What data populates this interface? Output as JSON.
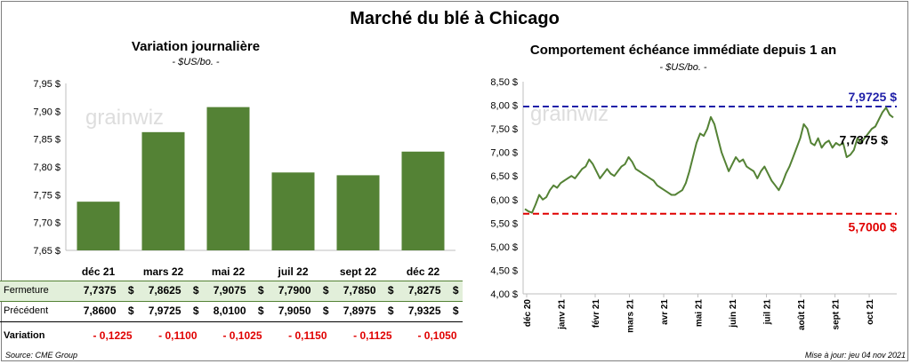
{
  "title": "Marché du blé à Chicago",
  "left_chart": {
    "title": "Variation  journalière",
    "subtitle": "- $US/bo. -"
  },
  "right_chart": {
    "title": "Comportement  échéance immédiate depuis 1 an",
    "subtitle": "- $US/bo. -"
  },
  "watermark": "grainwiz",
  "table": {
    "close_label": "Fermeture",
    "prev_label": "Précédent",
    "var_label": "Variation",
    "currency": "$",
    "close": [
      "7,7375",
      "7,8625",
      "7,9075",
      "7,7900",
      "7,7850",
      "7,8275"
    ],
    "prev": [
      "7,8600",
      "7,9725",
      "8,0100",
      "7,9050",
      "7,8975",
      "7,9325"
    ],
    "variation": [
      "- 0,1225",
      "- 0,1100",
      "- 0,1025",
      "- 0,1150",
      "- 0,1125",
      "- 0,1050"
    ]
  },
  "footer": {
    "source": "Source: CME Group",
    "updated": "Mise à jour: jeu 04 nov 2021"
  },
  "colors": {
    "bar": "#548235",
    "line": "#548235",
    "high": "#1f1fa8",
    "low": "#e00000",
    "close_row_bg": "#e2efda"
  },
  "chart_data": [
    {
      "type": "bar",
      "title": "Variation  journalière",
      "ylabel": "$US/bo.",
      "categories": [
        "déc 21",
        "mars 22",
        "mai 22",
        "juil 22",
        "sept 22",
        "déc 22"
      ],
      "values": [
        7.7375,
        7.8625,
        7.9075,
        7.79,
        7.785,
        7.8275
      ],
      "ylim": [
        7.65,
        7.95
      ],
      "yticks": [
        7.65,
        7.7,
        7.75,
        7.8,
        7.85,
        7.9,
        7.95
      ],
      "ytick_labels": [
        "7,65 $",
        "7,70 $",
        "7,75 $",
        "7,80 $",
        "7,85 $",
        "7,90 $",
        "7,95 $"
      ],
      "grid": false
    },
    {
      "type": "line",
      "title": "Comportement  échéance immédiate depuis 1 an",
      "ylabel": "$US/bo.",
      "x_start": "déc 20",
      "x_end": "nov 21",
      "xtick_labels": [
        "déc 20",
        "janv 21",
        "févr 21",
        "mars 21",
        "avr 21",
        "mai 21",
        "juin 21",
        "juil 21",
        "août 21",
        "sept 21",
        "oct 21"
      ],
      "ylim": [
        4.0,
        8.5
      ],
      "yticks": [
        4.0,
        4.5,
        5.0,
        5.5,
        6.0,
        6.5,
        7.0,
        7.5,
        8.0,
        8.5
      ],
      "ytick_labels": [
        "4,00 $",
        "4,50 $",
        "5,00 $",
        "5,50 $",
        "6,00 $",
        "6,50 $",
        "7,00 $",
        "7,50 $",
        "8,00 $",
        "8,50 $"
      ],
      "values": [
        5.8,
        5.75,
        5.72,
        5.9,
        6.1,
        6.0,
        6.05,
        6.2,
        6.3,
        6.25,
        6.35,
        6.4,
        6.45,
        6.5,
        6.45,
        6.55,
        6.65,
        6.7,
        6.85,
        6.75,
        6.6,
        6.45,
        6.55,
        6.65,
        6.55,
        6.5,
        6.6,
        6.7,
        6.75,
        6.9,
        6.8,
        6.65,
        6.6,
        6.55,
        6.5,
        6.45,
        6.4,
        6.3,
        6.25,
        6.2,
        6.15,
        6.1,
        6.1,
        6.15,
        6.2,
        6.35,
        6.6,
        6.9,
        7.2,
        7.4,
        7.35,
        7.5,
        7.75,
        7.6,
        7.3,
        7.0,
        6.8,
        6.6,
        6.75,
        6.9,
        6.8,
        6.85,
        6.7,
        6.65,
        6.6,
        6.45,
        6.6,
        6.7,
        6.55,
        6.4,
        6.3,
        6.2,
        6.35,
        6.55,
        6.7,
        6.9,
        7.1,
        7.3,
        7.6,
        7.5,
        7.2,
        7.15,
        7.3,
        7.1,
        7.2,
        7.25,
        7.1,
        7.2,
        7.15,
        7.2,
        6.9,
        6.95,
        7.05,
        7.3,
        7.2,
        7.3,
        7.4,
        7.5,
        7.55,
        7.7,
        7.85,
        7.95,
        7.8,
        7.74
      ],
      "reference_lines": [
        {
          "label": "7,9725 $",
          "value": 7.9725,
          "style": "dashed",
          "color": "#1f1fa8"
        },
        {
          "label": "5,7000 $",
          "value": 5.7,
          "style": "dashed",
          "color": "#e00000"
        }
      ],
      "last_value_label": "7,7375 $",
      "last_value": 7.7375
    }
  ]
}
